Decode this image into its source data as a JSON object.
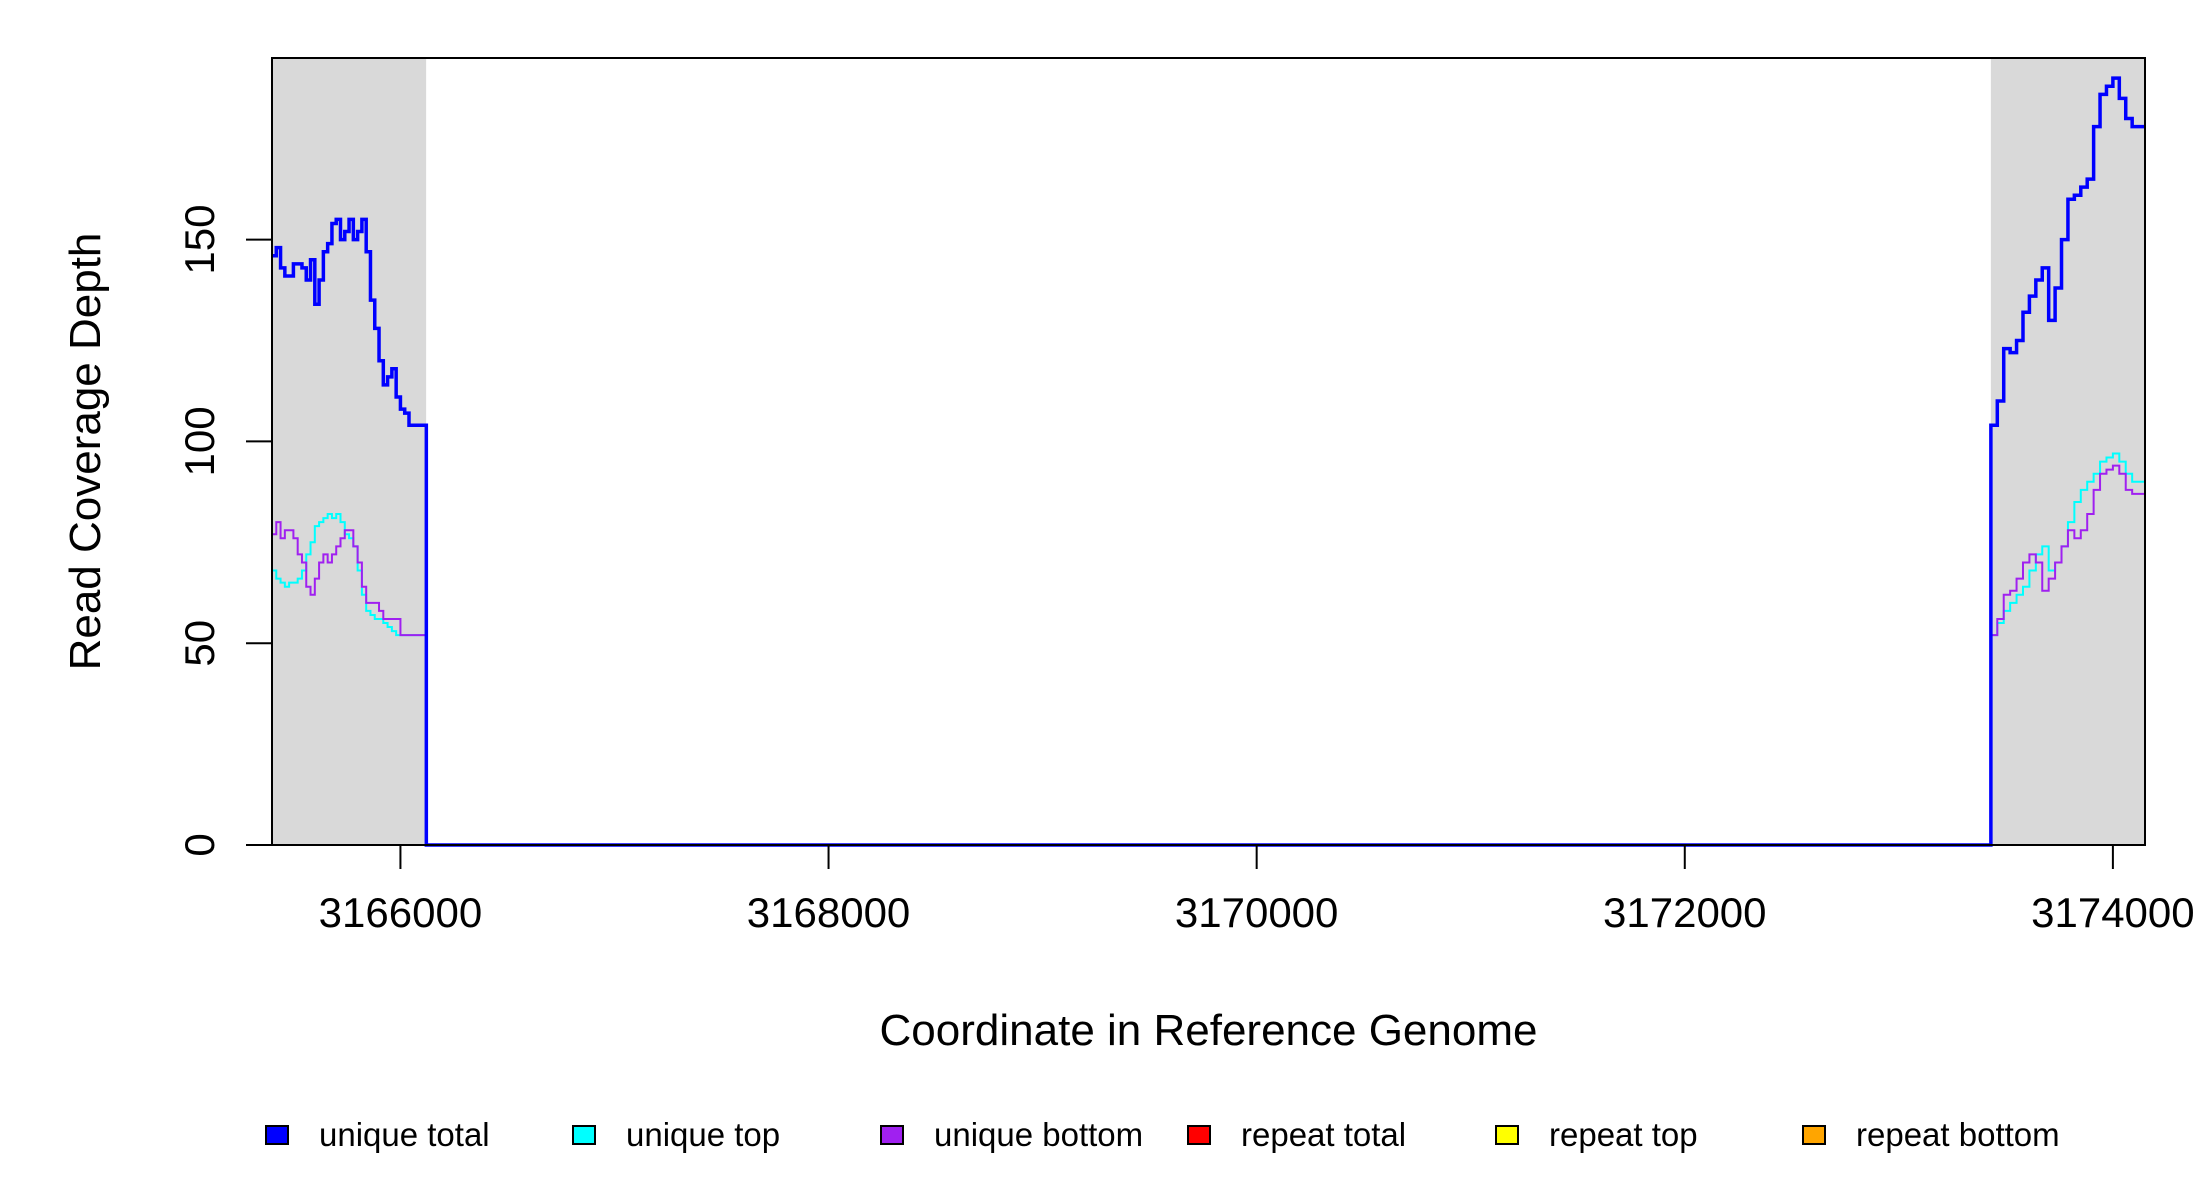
{
  "chart_data": {
    "type": "line",
    "title": "",
    "xlabel": "Coordinate in Reference Genome",
    "ylabel": "Read Coverage Depth",
    "xlim": [
      3165400,
      3174150
    ],
    "ylim": [
      0,
      195
    ],
    "x_ticks": [
      3166000,
      3168000,
      3170000,
      3172000,
      3174000
    ],
    "x_tick_labels": [
      "3166000",
      "3168000",
      "3170000",
      "3172000",
      "3174000"
    ],
    "y_ticks": [
      0,
      50,
      100,
      150
    ],
    "y_tick_labels": [
      "0",
      "50",
      "100",
      "150"
    ],
    "grid": false,
    "shaded_regions": [
      {
        "x0": 3165400,
        "x1": 3166120,
        "color": "#d9d9d9"
      },
      {
        "x0": 3173430,
        "x1": 3174150,
        "color": "#d9d9d9"
      }
    ],
    "series": [
      {
        "name": "unique total",
        "color": "#0000ff",
        "x": [
          3165400,
          3165420,
          3165440,
          3165460,
          3165480,
          3165500,
          3165520,
          3165540,
          3165560,
          3165580,
          3165600,
          3165620,
          3165640,
          3165660,
          3165680,
          3165700,
          3165720,
          3165740,
          3165760,
          3165780,
          3165800,
          3165820,
          3165840,
          3165860,
          3165880,
          3165900,
          3165920,
          3165940,
          3165960,
          3165980,
          3166000,
          3166020,
          3166040,
          3166060,
          3166080,
          3166100,
          3166120,
          3166121,
          3173429,
          3173430,
          3173460,
          3173490,
          3173520,
          3173550,
          3173580,
          3173610,
          3173640,
          3173670,
          3173700,
          3173730,
          3173760,
          3173790,
          3173820,
          3173850,
          3173880,
          3173910,
          3173940,
          3173970,
          3174000,
          3174030,
          3174060,
          3174090,
          3174120,
          3174150
        ],
        "y": [
          146,
          148,
          143,
          141,
          141,
          144,
          144,
          143,
          140,
          145,
          134,
          140,
          147,
          149,
          154,
          155,
          150,
          152,
          155,
          150,
          152,
          155,
          147,
          135,
          128,
          120,
          114,
          116,
          118,
          111,
          108,
          107,
          104,
          104,
          104,
          104,
          104,
          0,
          0,
          104,
          110,
          123,
          122,
          125,
          132,
          136,
          140,
          143,
          130,
          138,
          150,
          160,
          161,
          163,
          165,
          178,
          186,
          188,
          190,
          185,
          180,
          178,
          178,
          178
        ]
      },
      {
        "name": "unique top",
        "color": "#00ffff",
        "x": [
          3165400,
          3165420,
          3165440,
          3165460,
          3165480,
          3165500,
          3165520,
          3165540,
          3165560,
          3165580,
          3165600,
          3165620,
          3165640,
          3165660,
          3165680,
          3165700,
          3165720,
          3165740,
          3165760,
          3165780,
          3165800,
          3165820,
          3165840,
          3165860,
          3165880,
          3165900,
          3165920,
          3165940,
          3165960,
          3165980,
          3166000,
          3166020,
          3166040,
          3166060,
          3166080,
          3166100,
          3166120,
          3166121,
          3173429,
          3173430,
          3173460,
          3173490,
          3173520,
          3173550,
          3173580,
          3173610,
          3173640,
          3173670,
          3173700,
          3173730,
          3173760,
          3173790,
          3173820,
          3173850,
          3173880,
          3173910,
          3173940,
          3173970,
          3174000,
          3174030,
          3174060,
          3174090,
          3174120,
          3174150
        ],
        "y": [
          68,
          66,
          65,
          64,
          65,
          65,
          66,
          68,
          72,
          75,
          79,
          80,
          81,
          82,
          81,
          82,
          80,
          77,
          76,
          74,
          68,
          62,
          58,
          57,
          56,
          56,
          55,
          54,
          53,
          52,
          52,
          52,
          52,
          52,
          52,
          52,
          52,
          0,
          0,
          52,
          55,
          58,
          60,
          62,
          64,
          68,
          72,
          74,
          68,
          70,
          74,
          80,
          85,
          88,
          90,
          92,
          95,
          96,
          97,
          95,
          92,
          90,
          90,
          90
        ]
      },
      {
        "name": "unique bottom",
        "color": "#a020f0",
        "x": [
          3165400,
          3165420,
          3165440,
          3165460,
          3165480,
          3165500,
          3165520,
          3165540,
          3165560,
          3165580,
          3165600,
          3165620,
          3165640,
          3165660,
          3165680,
          3165700,
          3165720,
          3165740,
          3165760,
          3165780,
          3165800,
          3165820,
          3165840,
          3165860,
          3165880,
          3165900,
          3165920,
          3165940,
          3165960,
          3165980,
          3166000,
          3166020,
          3166040,
          3166060,
          3166080,
          3166100,
          3166120,
          3166121,
          3173429,
          3173430,
          3173460,
          3173490,
          3173520,
          3173550,
          3173580,
          3173610,
          3173640,
          3173670,
          3173700,
          3173730,
          3173760,
          3173790,
          3173820,
          3173850,
          3173880,
          3173910,
          3173940,
          3173970,
          3174000,
          3174030,
          3174060,
          3174090,
          3174120,
          3174150
        ],
        "y": [
          77,
          80,
          76,
          78,
          78,
          76,
          72,
          70,
          64,
          62,
          66,
          70,
          72,
          70,
          72,
          74,
          76,
          78,
          78,
          74,
          70,
          64,
          60,
          60,
          60,
          58,
          56,
          56,
          56,
          56,
          52,
          52,
          52,
          52,
          52,
          52,
          52,
          0,
          0,
          52,
          56,
          62,
          63,
          66,
          70,
          72,
          70,
          63,
          66,
          70,
          74,
          78,
          76,
          78,
          82,
          88,
          92,
          93,
          94,
          92,
          88,
          87,
          87,
          87
        ]
      },
      {
        "name": "repeat total",
        "color": "#ff0000",
        "x": [
          3165400,
          3174150
        ],
        "y": [
          0,
          0
        ]
      },
      {
        "name": "repeat top",
        "color": "#ffff00",
        "x": [
          3165400,
          3174150
        ],
        "y": [
          0,
          0
        ]
      },
      {
        "name": "repeat bottom",
        "color": "#ffa500",
        "x": [
          3165400,
          3174150
        ],
        "y": [
          0,
          0
        ]
      }
    ],
    "legend": {
      "placement": "bottom",
      "items": [
        {
          "label": "unique total",
          "color": "#0000ff"
        },
        {
          "label": "unique top",
          "color": "#00ffff"
        },
        {
          "label": "unique bottom",
          "color": "#a020f0"
        },
        {
          "label": "repeat total",
          "color": "#ff0000"
        },
        {
          "label": "repeat top",
          "color": "#ffff00"
        },
        {
          "label": "repeat bottom",
          "color": "#ffa500"
        }
      ]
    }
  }
}
